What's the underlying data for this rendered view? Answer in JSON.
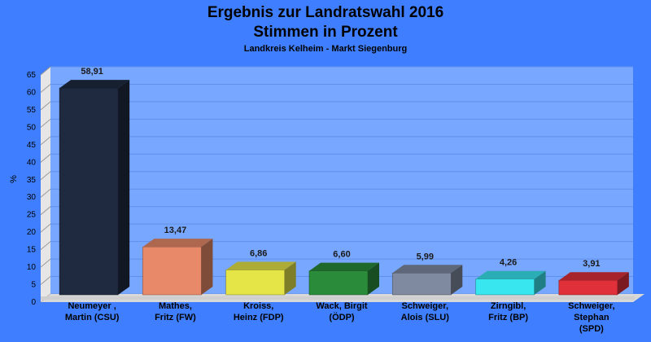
{
  "chart_data": {
    "type": "bar",
    "title": "Ergebnis zur Landratswahl 2016",
    "title2": "Stimmen in Prozent",
    "subtitle": "Landkreis Kelheim - Markt Siegenburg",
    "ylabel": "%",
    "ylim": [
      0,
      65
    ],
    "yticks": [
      0,
      5,
      10,
      15,
      20,
      25,
      30,
      35,
      40,
      45,
      50,
      55,
      60,
      65
    ],
    "grid": true,
    "categories": [
      [
        "Neumeyer ,",
        "Martin (CSU)"
      ],
      [
        "Mathes,",
        "Fritz (FW)"
      ],
      [
        "Kroiss,",
        "Heinz (FDP)"
      ],
      [
        "Wack, Birgit",
        "(ÖDP)"
      ],
      [
        "Schweiger,",
        "Alois (SLU)"
      ],
      [
        "Zirngibl,",
        "Fritz (BP)"
      ],
      [
        "Schweiger,",
        "Stephan",
        "(SPD)"
      ]
    ],
    "values": [
      58.91,
      13.47,
      6.86,
      6.6,
      5.99,
      4.26,
      3.91
    ],
    "value_labels": [
      "58,91",
      "13,47",
      "6,86",
      "6,60",
      "5,99",
      "4,26",
      "3,91"
    ],
    "colors": [
      "#1f2a40",
      "#e88a6a",
      "#e5e548",
      "#2a8c3a",
      "#7f8aa0",
      "#38e6f0",
      "#e0303a"
    ]
  }
}
